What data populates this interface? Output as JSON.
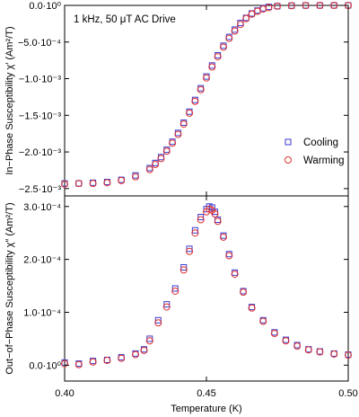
{
  "figure": {
    "annotation": "1 kHz, 50 μT AC Drive",
    "xlabel": "Temperature (K)",
    "legend": [
      "Cooling",
      "Warming"
    ]
  },
  "colors": {
    "cooling": "#3a3ad0",
    "warming": "#e03030",
    "frame": "#000000"
  },
  "chart_data": [
    {
      "type": "scatter",
      "panel": "top",
      "ylabel": "In−Phase Susceptibility χ′ (Am²/T)",
      "xlim": [
        0.4,
        0.5
      ],
      "ylim": [
        -0.0026,
        0.0
      ],
      "x_ticks": [
        "0.40",
        "0.45",
        "0.50"
      ],
      "y_ticks": [
        {
          "value": 0.0,
          "label": "0.0·10⁰"
        },
        {
          "value": -0.0005,
          "label": "−5.0·10⁻⁴"
        },
        {
          "value": -0.001,
          "label": "−1.0·10⁻³"
        },
        {
          "value": -0.0015,
          "label": "−1.5·10⁻³"
        },
        {
          "value": -0.002,
          "label": "−2.0·10⁻³"
        },
        {
          "value": -0.0025,
          "label": "−2.5·10⁻³"
        }
      ],
      "annotation": "1 kHz, 50 μT AC Drive",
      "legend_position": "right",
      "series": [
        {
          "name": "Cooling",
          "marker": "square",
          "color": "#3a3ad0",
          "x": [
            0.4,
            0.405,
            0.41,
            0.415,
            0.42,
            0.425,
            0.43,
            0.432,
            0.434,
            0.436,
            0.438,
            0.44,
            0.442,
            0.444,
            0.446,
            0.448,
            0.45,
            0.452,
            0.454,
            0.456,
            0.458,
            0.46,
            0.462,
            0.464,
            0.466,
            0.468,
            0.47,
            0.472,
            0.475,
            0.48,
            0.485,
            0.49,
            0.495,
            0.5
          ],
          "y": [
            -0.00243,
            -0.00243,
            -0.00242,
            -0.00241,
            -0.00238,
            -0.00232,
            -0.00222,
            -0.00215,
            -0.00207,
            -0.00197,
            -0.00186,
            -0.00174,
            -0.0016,
            -0.00145,
            -0.00129,
            -0.00113,
            -0.00097,
            -0.00082,
            -0.00068,
            -0.00055,
            -0.00043,
            -0.00033,
            -0.00024,
            -0.00017,
            -0.00011,
            -7e-05,
            -4e-05,
            -2e-05,
            -1e-05,
            -3e-06,
            -1e-06,
            0.0,
            0.0,
            0.0
          ]
        },
        {
          "name": "Warming",
          "marker": "circle",
          "color": "#e03030",
          "x": [
            0.4,
            0.405,
            0.41,
            0.415,
            0.42,
            0.425,
            0.43,
            0.432,
            0.434,
            0.436,
            0.438,
            0.44,
            0.442,
            0.444,
            0.446,
            0.448,
            0.45,
            0.452,
            0.454,
            0.456,
            0.458,
            0.46,
            0.462,
            0.464,
            0.466,
            0.468,
            0.47,
            0.472,
            0.475,
            0.48,
            0.485,
            0.49,
            0.495,
            0.5
          ],
          "y": [
            -0.00244,
            -0.00243,
            -0.00243,
            -0.00242,
            -0.00239,
            -0.00234,
            -0.00224,
            -0.00217,
            -0.00209,
            -0.00199,
            -0.00188,
            -0.00176,
            -0.00162,
            -0.00147,
            -0.00131,
            -0.00115,
            -0.00099,
            -0.00084,
            -0.0007,
            -0.00057,
            -0.00045,
            -0.00035,
            -0.00026,
            -0.00018,
            -0.00012,
            -8e-05,
            -5e-05,
            -3e-05,
            -1e-05,
            -4e-06,
            -1e-06,
            0.0,
            0.0,
            0.0
          ]
        }
      ]
    },
    {
      "type": "scatter",
      "panel": "bottom",
      "ylabel": "Out−of−Phase Susceptibility χ″ (Am²/T)",
      "xlim": [
        0.4,
        0.5
      ],
      "ylim": [
        -3e-05,
        0.00032
      ],
      "x_ticks": [
        "0.40",
        "0.45",
        "0.50"
      ],
      "y_ticks": [
        {
          "value": 0.0,
          "label": "0.0·10⁰"
        },
        {
          "value": 0.0001,
          "label": "1.0·10⁻⁴"
        },
        {
          "value": 0.0002,
          "label": "2.0·10⁻⁴"
        },
        {
          "value": 0.0003,
          "label": "3.0·10⁻⁴"
        }
      ],
      "series": [
        {
          "name": "Cooling",
          "marker": "square",
          "color": "#3a3ad0",
          "x": [
            0.4,
            0.405,
            0.41,
            0.415,
            0.42,
            0.425,
            0.428,
            0.43,
            0.433,
            0.436,
            0.439,
            0.442,
            0.444,
            0.446,
            0.448,
            0.45,
            0.451,
            0.452,
            0.453,
            0.454,
            0.456,
            0.458,
            0.46,
            0.463,
            0.466,
            0.47,
            0.474,
            0.478,
            0.482,
            0.486,
            0.49,
            0.495,
            0.5
          ],
          "y": [
            5e-06,
            3e-06,
            8e-06,
            1e-05,
            1.5e-05,
            2.2e-05,
            3e-05,
            5e-05,
            8.5e-05,
            0.000115,
            0.000145,
            0.000185,
            0.00022,
            0.000255,
            0.00028,
            0.000295,
            0.0003,
            0.000298,
            0.00029,
            0.000275,
            0.000245,
            0.00021,
            0.000175,
            0.00014,
            0.00011,
            8.5e-05,
            6.2e-05,
            4.8e-05,
            3.8e-05,
            3e-05,
            2.6e-05,
            2.2e-05,
            2e-05
          ]
        },
        {
          "name": "Warming",
          "marker": "circle",
          "color": "#e03030",
          "x": [
            0.4,
            0.405,
            0.41,
            0.415,
            0.42,
            0.425,
            0.428,
            0.43,
            0.433,
            0.436,
            0.439,
            0.442,
            0.444,
            0.446,
            0.448,
            0.45,
            0.451,
            0.452,
            0.453,
            0.454,
            0.456,
            0.458,
            0.46,
            0.463,
            0.466,
            0.47,
            0.474,
            0.478,
            0.482,
            0.486,
            0.49,
            0.495,
            0.5
          ],
          "y": [
            3e-06,
            1e-06,
            6e-06,
            9e-06,
            1.3e-05,
            2e-05,
            2.8e-05,
            4.6e-05,
            8e-05,
            0.00011,
            0.00014,
            0.00018,
            0.000215,
            0.00025,
            0.000275,
            0.00029,
            0.000295,
            0.000293,
            0.000286,
            0.000272,
            0.000242,
            0.000207,
            0.000172,
            0.000138,
            0.000108,
            8.3e-05,
            6e-05,
            4.6e-05,
            3.6e-05,
            2.9e-05,
            2.5e-05,
            2.1e-05,
            1.9e-05
          ]
        }
      ]
    }
  ]
}
